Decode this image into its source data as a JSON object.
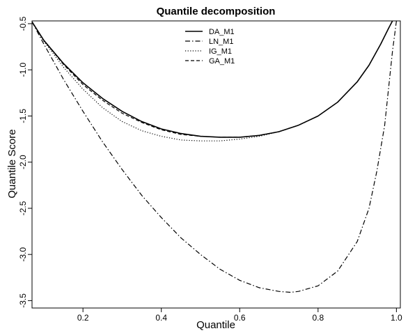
{
  "chart_data": {
    "type": "line",
    "title": "Quantile decomposition",
    "xlabel": "Quantile",
    "ylabel": "Quantile Score",
    "xlim": [
      0.07,
      1.01
    ],
    "ylim": [
      -3.58,
      -0.47
    ],
    "xticks": [
      0.2,
      0.4,
      0.6,
      0.8,
      1.0
    ],
    "xtick_labels": [
      "0.2",
      "0.4",
      "0.6",
      "0.8",
      "1.0"
    ],
    "yticks": [
      -0.5,
      -1.0,
      -1.5,
      -2.0,
      -2.5,
      -3.0,
      -3.5
    ],
    "ytick_labels": [
      "-0.5",
      "-1.0",
      "-1.5",
      "-2.0",
      "-2.5",
      "-3.0",
      "-3.5"
    ],
    "grid": false,
    "legend_position": "top-center",
    "series": [
      {
        "name": "DA_M1",
        "line_style": "solid",
        "color": "#000000",
        "x": [
          0.07,
          0.1,
          0.15,
          0.2,
          0.25,
          0.3,
          0.35,
          0.4,
          0.45,
          0.5,
          0.55,
          0.6,
          0.65,
          0.7,
          0.75,
          0.8,
          0.85,
          0.9,
          0.93,
          0.96,
          0.98,
          0.99
        ],
        "y": [
          -0.48,
          -0.68,
          -0.93,
          -1.14,
          -1.31,
          -1.45,
          -1.56,
          -1.64,
          -1.69,
          -1.72,
          -1.73,
          -1.73,
          -1.71,
          -1.67,
          -1.6,
          -1.5,
          -1.35,
          -1.13,
          -0.95,
          -0.72,
          -0.55,
          -0.47
        ]
      },
      {
        "name": "LN_M1",
        "line_style": "dashdot",
        "color": "#000000",
        "x": [
          0.07,
          0.1,
          0.15,
          0.2,
          0.25,
          0.3,
          0.35,
          0.4,
          0.45,
          0.5,
          0.55,
          0.6,
          0.65,
          0.7,
          0.73,
          0.75,
          0.8,
          0.85,
          0.9,
          0.93,
          0.95,
          0.97,
          0.98,
          0.99,
          1.0
        ],
        "y": [
          -0.48,
          -0.72,
          -1.1,
          -1.45,
          -1.78,
          -2.08,
          -2.36,
          -2.6,
          -2.82,
          -3.0,
          -3.16,
          -3.28,
          -3.36,
          -3.4,
          -3.41,
          -3.4,
          -3.34,
          -3.18,
          -2.86,
          -2.5,
          -2.1,
          -1.6,
          -1.2,
          -0.8,
          -0.47
        ]
      },
      {
        "name": "IG_M1",
        "line_style": "dotted",
        "color": "#000000",
        "x": [
          0.07,
          0.1,
          0.15,
          0.2,
          0.25,
          0.3,
          0.35,
          0.4,
          0.45,
          0.5,
          0.55,
          0.6,
          0.65,
          0.7,
          0.75,
          0.8,
          0.85,
          0.9,
          0.93,
          0.96,
          0.98,
          0.99
        ],
        "y": [
          -0.48,
          -0.69,
          -0.97,
          -1.21,
          -1.41,
          -1.56,
          -1.66,
          -1.72,
          -1.76,
          -1.77,
          -1.77,
          -1.75,
          -1.72,
          -1.67,
          -1.6,
          -1.5,
          -1.35,
          -1.13,
          -0.95,
          -0.72,
          -0.55,
          -0.47
        ]
      },
      {
        "name": "GA_M1",
        "line_style": "dashed",
        "color": "#000000",
        "x": [
          0.07,
          0.1,
          0.15,
          0.2,
          0.25,
          0.3,
          0.35,
          0.4,
          0.45,
          0.5,
          0.55,
          0.6,
          0.65,
          0.7,
          0.75,
          0.8,
          0.85,
          0.9,
          0.93,
          0.96,
          0.98,
          0.99
        ],
        "y": [
          -0.48,
          -0.68,
          -0.94,
          -1.16,
          -1.33,
          -1.47,
          -1.57,
          -1.65,
          -1.7,
          -1.72,
          -1.73,
          -1.73,
          -1.71,
          -1.67,
          -1.6,
          -1.5,
          -1.35,
          -1.13,
          -0.95,
          -0.72,
          -0.55,
          -0.47
        ]
      }
    ]
  }
}
